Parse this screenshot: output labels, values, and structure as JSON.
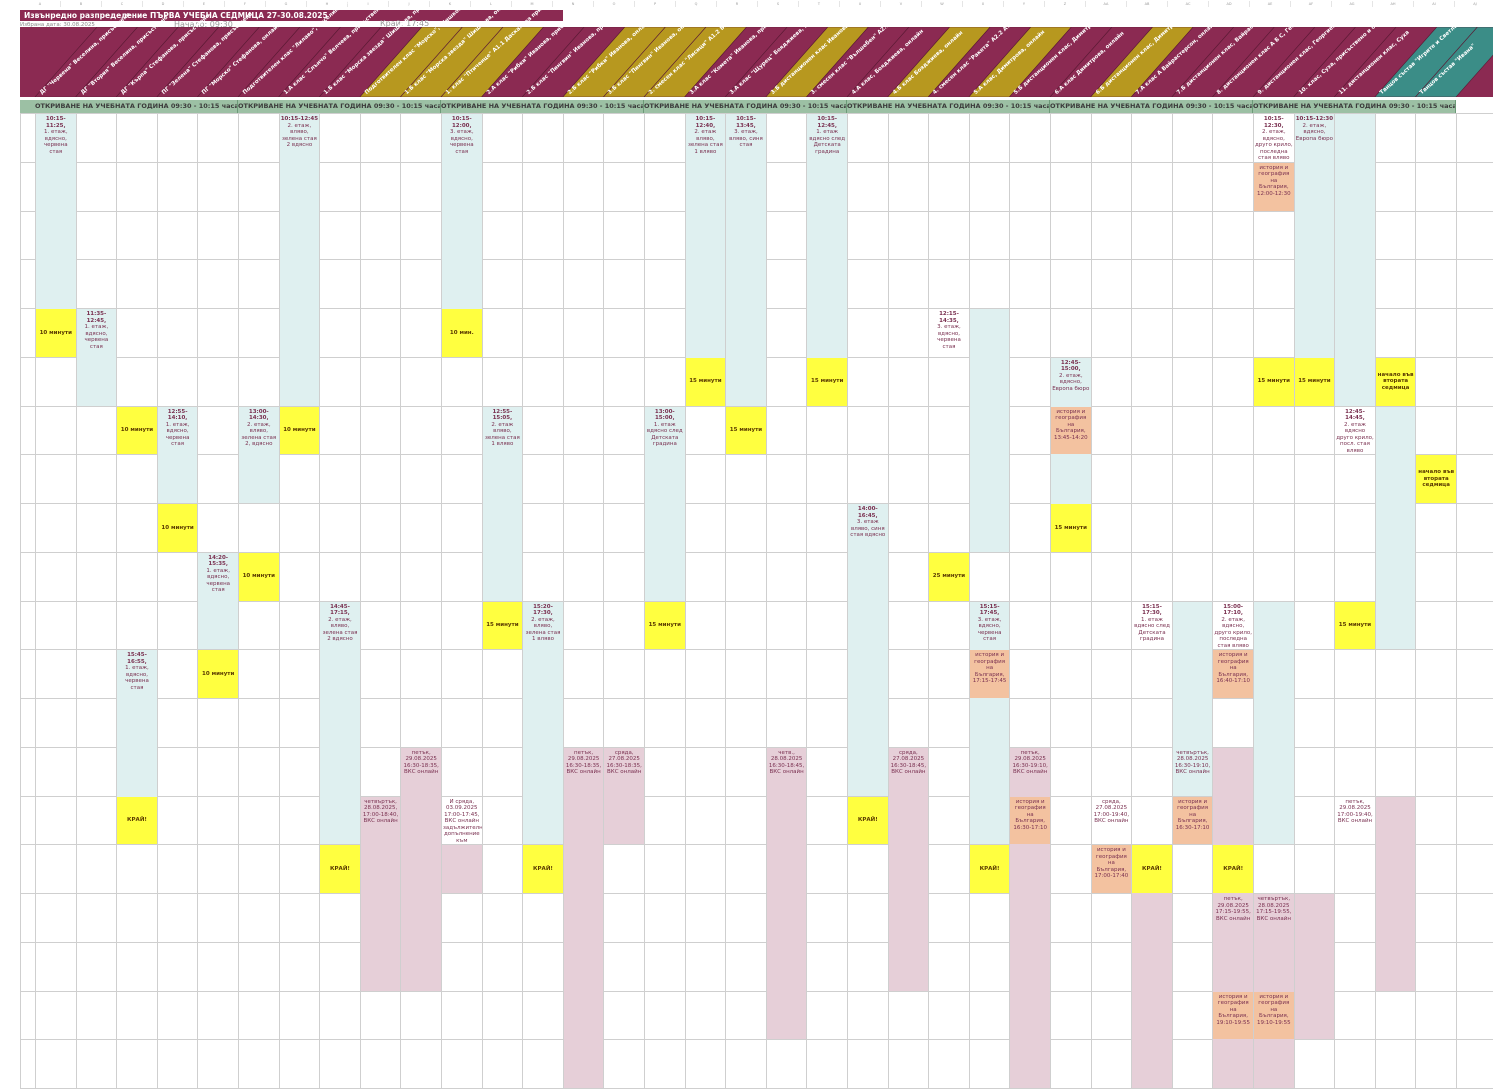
{
  "header": {
    "title": "Извънредно разпределение ПЪРВА УЧЕБНА СЕДМИЦА 27-30.08.2025",
    "selected_date": "Избрана дата: 30.08.2025",
    "start_label": "Начало: 09:30",
    "end_label": "Край: 17:45"
  },
  "columns": [
    "ДГ \"Червена\" Веселина, присъствено",
    "ДГ \"Втория\" Веселина, присъствено",
    "ДГ \"Кърпа\" Стефанова, присъствено",
    "ПГ \"Зелена\" Стефанова, присъствено",
    "ПГ \"Морско\" Стефанова, онлайн",
    "Подготвителен клас \"Лилаво\", Веселина присъствено",
    "1.А клас \"Слънчо\" Велчева, присъствено",
    "1.Б клас \"Морска звезда\" Шишкова, присъствено",
    "Подготвителен клас \"Морско\", Шишкова онлайн",
    "1.Б клас \"Морска звезда\" Шишкова, онлайн",
    "1. клас \"Птиченце\" А1.1 Даскалова присъствено",
    "2.А клас \"Рибки\" Иванова, присъствено",
    "2.Б клас \"Пингвин\" Иванова, присъствено",
    "2.Б клас \"Рибки\" Иванова, онлайн",
    "3.Б клас \"Пингвин\" Иванова, онлайн",
    "2. смесен клас \"Лисици\" А1.2 Бабачева, присъствено",
    "3.А клас \"Комета\" Иванова, присъствено",
    "3.А клас \"Щурец\" Бояджиева, присъствено",
    "3.Б дистанционен клас Иванова, онлайн",
    "3. смесен клас \"Вълшебен\" А2.1 Бабачева, присъствено",
    "4.А клас, Бояджиева, онлайн",
    "4.Б клас Бояджиева, онлайн",
    "4. смесен клас \"Ракета\" А2.2 Атанасова, присъствено",
    "5.А клас, Димитрова, онлайн",
    "5.Б дистанционен клас, Димитрова, онлайн",
    "6.А клас Димитрова, онлайн",
    "6.Б дистанционен клас, Димитрова, онлайн",
    "7.А клас А Вайрастерсон, онлайн",
    "7.Б дистанционен клас, Вайрастерсон, онлайн",
    "8. дистанционен клас А Б С, Георгиева, присъствено",
    "9. дистанционен клас, Георгиева, онлайн",
    "10. клас, Суха, присъствено и онлайн",
    "11. дистанционен клас, Суха",
    "Танцов състав \"Игрите и Светлана\"",
    "Танцов състав \"Ивана\""
  ],
  "colors": {
    "claret": "#8b2a52",
    "gold": "#b7981f",
    "teal": "#3b8d87",
    "opening": "#9cc0a4",
    "light": "#dff0f0",
    "yellow": "#ffff40",
    "orange": "#f3c2a0",
    "pink": "#e6cfd8"
  },
  "opening_label": "ОТКРИВАНЕ НА УЧЕБНАТА ГОДИНА 09:30 - 10:15  часа",
  "cells": [
    {
      "t": "10:15-11:25,",
      "d": "1. етаж, вдясно, червена стая"
    },
    {
      "t": "10 минути",
      "d": ""
    },
    {
      "t": "11:35-12:45,",
      "d": "1. етаж, вдясно, червена стая"
    },
    {
      "t": "10 минути",
      "d": ""
    },
    {
      "t": "КРАЙ!",
      "d": ""
    },
    {
      "t": "15:45-16:55,",
      "d": "1. етаж, вдясно, червена стая"
    },
    {
      "t": "12:55-14:10,",
      "d": "1. етаж, вдясно, червена стая"
    },
    {
      "t": "10 минути",
      "d": ""
    },
    {
      "t": "14:20-15:35,",
      "d": "1. етаж, вдясно, червена стая"
    },
    {
      "t": "10 минути",
      "d": ""
    },
    {
      "t": "13:00-14:30,",
      "d": "2. етаж, вляво, зелена стая 2, вдясно"
    },
    {
      "t": "10 минути",
      "d": ""
    },
    {
      "t": "10:15-12:45",
      "d": "2. етаж, вляво, зелена стая 2 вдясно"
    },
    {
      "t": "10 минути",
      "d": ""
    },
    {
      "t": "14:45-17:15,",
      "d": "2. етаж, вляво, зелена стая 2 вдясно"
    },
    {
      "t": "КРАЙ!",
      "d": ""
    },
    {
      "t": "",
      "d": "четвъртък, 28.08.2025, 17:00-18:40, ВКС онлайн"
    },
    {
      "t": "",
      "d": "петък, 29.08.2025 16:30-18:35, ВКС онлайн"
    },
    {
      "t": "10:15-12:00,",
      "d": "3. етаж, вдясно, червена стая"
    },
    {
      "t": "10 мин.",
      "d": ""
    },
    {
      "t": "",
      "d": "И сряда, 03.09.2025 17:00-17:45, ВКС онлайн задължително, допълнение към присъств."
    },
    {
      "t": "12:55-15:05,",
      "d": "2. етаж вляво, зелена стая 1 вляво"
    },
    {
      "t": "15 минути",
      "d": ""
    },
    {
      "t": "15:20-17:30,",
      "d": "2. етаж, вляво, зелена стая 1 вляво"
    },
    {
      "t": "КРАЙ!",
      "d": ""
    },
    {
      "t": "",
      "d": "петък, 29.08.2025 16:30-18:35, ВКС онлайн"
    },
    {
      "t": "",
      "d": "сряда, 27.08.2025 16:30-18:35, ВКС онлайн"
    },
    {
      "t": "13:00-15:00,",
      "d": "1. етаж вдясно след Детската градина"
    },
    {
      "t": "15 минути",
      "d": ""
    },
    {
      "t": "10:15-12:40,",
      "d": "2. етаж вляво, зелена стая 1 вляво"
    },
    {
      "t": "15 минути",
      "d": ""
    },
    {
      "t": "10:15-13:45,",
      "d": "3. етаж, вляво, синя стая"
    },
    {
      "t": "15 минути",
      "d": ""
    },
    {
      "t": "",
      "d": "четв., 28.08.2025 16:30-18:45, ВКС онлайн"
    },
    {
      "t": "10:15-12:45,",
      "d": "1. етаж вдясно след Детската градина"
    },
    {
      "t": "15 минути",
      "d": ""
    },
    {
      "t": "14:00-16:45,",
      "d": "3. етаж вляво, синя стая вдясно"
    },
    {
      "t": "КРАЙ!",
      "d": ""
    },
    {
      "t": "",
      "d": "сряда, 27.08.2025 16:30-18:45, ВКС онлайн"
    },
    {
      "t": "12:15-14:35,",
      "d": "3. етаж, вдясно, червена стая"
    },
    {
      "t": "25 минути",
      "d": ""
    },
    {
      "t": "15:15-17:45,",
      "d": "3. етаж, вдясно, червена стая"
    },
    {
      "t": "",
      "d": "история и география на България, 17:15-17:45"
    },
    {
      "t": "КРАЙ!",
      "d": ""
    },
    {
      "t": "",
      "d": "петък, 29.08.2025 16:30-19:10, ВКС онлайн"
    },
    {
      "t": "",
      "d": "история и география на България, 16:30-17:10"
    },
    {
      "t": "12:45-15:00,",
      "d": "2. етаж, вдясно, Европа бюро"
    },
    {
      "t": "",
      "d": "история и география на България, 13:45-14:20"
    },
    {
      "t": "15 минути",
      "d": ""
    },
    {
      "t": "",
      "d": "сряда, 27.08.2025 17:00-19:40, ВКС онлайн"
    },
    {
      "t": "",
      "d": "история и география на България, 17:00-17:40"
    },
    {
      "t": "15:15-17:30,",
      "d": "1. етаж вдясно след Детската градина"
    },
    {
      "t": "КРАЙ!",
      "d": ""
    },
    {
      "t": "",
      "d": "четвъртък, 28.08.2025 16:30-19:10, ВКС онлайн"
    },
    {
      "t": "",
      "d": "история и география на България, 16:30-17:10"
    },
    {
      "t": "15:00-17:10,",
      "d": "2. етаж, вдясно, друго крило, последна стая вляво"
    },
    {
      "t": "",
      "d": "история и география на България, 16:40-17:10"
    },
    {
      "t": "КРАЙ!",
      "d": ""
    },
    {
      "t": "",
      "d": "петък, 29.08.2025 17:15-19:55, ВКС онлайн"
    },
    {
      "t": "",
      "d": "история и география на България, 19:10-19:55"
    },
    {
      "t": "10:15-12:30,",
      "d": "2. етаж, вдясно, друго крило, последна стая вляво"
    },
    {
      "t": "",
      "d": "история и география на България, 12:00-12:30"
    },
    {
      "t": "15 минути",
      "d": ""
    },
    {
      "t": "",
      "d": "четвъртък, 28.08.2025 17:15-19:55, ВКС онлайн"
    },
    {
      "t": "",
      "d": "история и география на България, 19:10-19:55"
    },
    {
      "t": "10:15-12:30",
      "d": "2. етаж, вдясно, Европа бюро"
    },
    {
      "t": "15 минути",
      "d": ""
    },
    {
      "t": "12:45-14:45,",
      "d": "2. етаж вдясно друго крило, посл. стая вляво"
    },
    {
      "t": "15 минути",
      "d": ""
    },
    {
      "t": "",
      "d": "петък, 29.08.2025 17:00-19:40, ВКС онлайн"
    },
    {
      "t": "начало във втората седмица",
      "d": ""
    },
    {
      "t": "начало във втората седмица",
      "d": ""
    }
  ]
}
